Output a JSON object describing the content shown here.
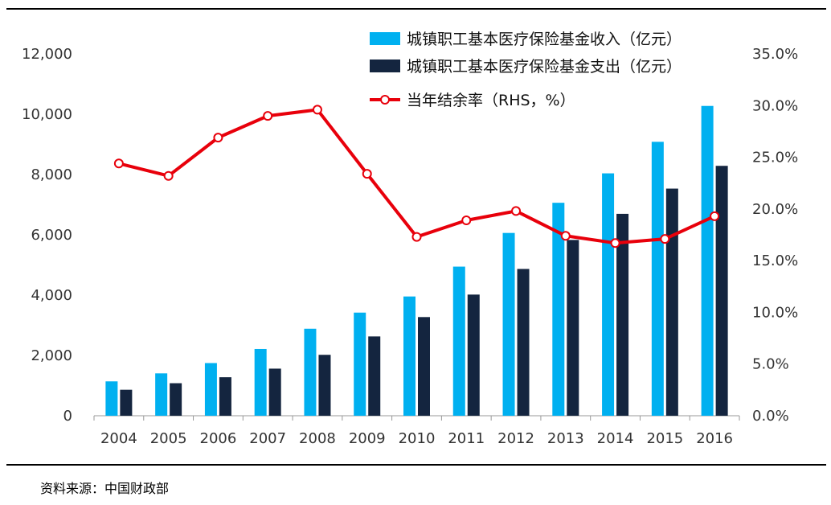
{
  "chart_data": {
    "type": "bar",
    "categories": [
      "2004",
      "2005",
      "2006",
      "2007",
      "2008",
      "2009",
      "2010",
      "2011",
      "2012",
      "2013",
      "2014",
      "2015",
      "2016"
    ],
    "series": [
      {
        "name": "城镇职工基本医疗保险基金收入（亿元）",
        "type": "bar",
        "axis": "left",
        "color": "#00B0F0",
        "values": [
          1140,
          1405,
          1747,
          2214,
          2886,
          3420,
          3955,
          4945,
          6062,
          7062,
          8038,
          9084,
          10274
        ]
      },
      {
        "name": "城镇职工基本医疗保险基金支出（亿元）",
        "type": "bar",
        "axis": "left",
        "color": "#14253F",
        "values": [
          862,
          1079,
          1277,
          1562,
          2020,
          2630,
          3272,
          4018,
          4868,
          5830,
          6696,
          7532,
          8287
        ]
      },
      {
        "name": "当年结余率（RHS，%）",
        "type": "line",
        "axis": "right",
        "color": "#E8000B",
        "values": [
          24.4,
          23.2,
          26.9,
          29.0,
          29.6,
          23.4,
          17.3,
          18.9,
          19.8,
          17.4,
          16.7,
          17.1,
          19.3
        ]
      }
    ],
    "y_left": {
      "min": 0,
      "max": 12000,
      "ticks": [
        0,
        2000,
        4000,
        6000,
        8000,
        10000,
        12000
      ],
      "tick_labels": [
        "0",
        "2,000",
        "4,000",
        "6,000",
        "8,000",
        "10,000",
        "12,000"
      ]
    },
    "y_right": {
      "min": 0,
      "max": 35,
      "ticks": [
        0,
        5,
        10,
        15,
        20,
        25,
        30,
        35
      ],
      "tick_labels": [
        "0.0%",
        "5.0%",
        "10.0%",
        "15.0%",
        "20.0%",
        "25.0%",
        "30.0%",
        "35.0%"
      ]
    },
    "grid": false,
    "legend_position": "top-center"
  },
  "source": "资料来源：中国财政部"
}
